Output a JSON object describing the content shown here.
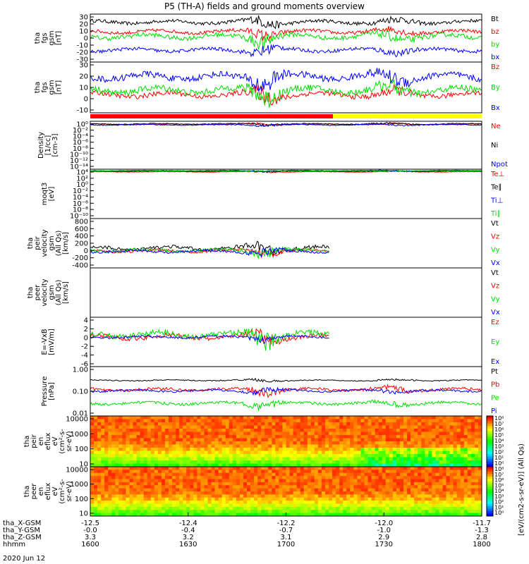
{
  "title": "P5 (TH-A) fields and ground moments overview",
  "date": "2020 Jun 12",
  "colors": {
    "black": "#000000",
    "red": "#ff0000",
    "green": "#00dd00",
    "blue": "#0000ff",
    "yellow": "#ffff00"
  },
  "chart_data": [
    {
      "type": "line",
      "ylabel": [
        "tha",
        "fgs",
        "gsm",
        "[nT]"
      ],
      "yticks": [
        "30",
        "20",
        "10",
        "0",
        "-10",
        "-20",
        "-30"
      ],
      "ylim": [
        -30,
        30
      ],
      "series": [
        {
          "name": "Bt",
          "color": "#000000",
          "level": 20,
          "amp": 3
        },
        {
          "name": "bz",
          "color": "#ff0000",
          "level": 8,
          "amp": 3
        },
        {
          "name": "by",
          "color": "#00dd00",
          "level": 2,
          "amp": 4
        },
        {
          "name": "bx",
          "color": "#0000ff",
          "level": -15,
          "amp": 3
        }
      ]
    },
    {
      "type": "line",
      "ylabel": [
        "tha",
        "fgs",
        "gsm",
        "[nT]"
      ],
      "yticks": [
        "30",
        "20",
        "10",
        "0",
        "-10"
      ],
      "ylim": [
        -15,
        30
      ],
      "series": [
        {
          "name": "Bz",
          "color": "#ff0000",
          "level": 1,
          "amp": 3
        },
        {
          "name": "By",
          "color": "#00dd00",
          "level": 5,
          "amp": 4
        },
        {
          "name": "Bx",
          "color": "#0000ff",
          "level": 17,
          "amp": 4
        }
      ]
    },
    {
      "type": "line",
      "ylabel": [
        "Density",
        "[1/cc]",
        "[cm-3]"
      ],
      "yticks": [
        "10⁰",
        "10⁻²",
        "10⁻⁴",
        "10⁻⁶",
        "10⁻⁸",
        "10⁻¹⁰",
        "10⁻¹²",
        "10⁻¹⁴"
      ],
      "ylim": [
        -15,
        1
      ],
      "series": [
        {
          "name": "Ne",
          "color": "#ff0000",
          "level": 0,
          "amp": 0.2
        },
        {
          "name": "Ni",
          "color": "#000000",
          "level": 0.1,
          "amp": 0.2
        },
        {
          "name": "Npot",
          "color": "#0000ff",
          "level": -0.2,
          "amp": 0.2
        }
      ]
    },
    {
      "type": "line",
      "ylabel": [
        "moqt3",
        "[eV]"
      ],
      "yticks": [
        "10⁴",
        "10²",
        "10⁰",
        "10⁻²",
        "10⁻⁴",
        "10⁻⁶",
        "10⁻⁸",
        "10⁻¹⁰"
      ],
      "ylim": [
        -11,
        4
      ],
      "series": [
        {
          "name": "Te⊥",
          "color": "#ff0000",
          "level": 3.2,
          "amp": 0.1
        },
        {
          "name": "Te∥",
          "color": "#000000",
          "level": 3.4,
          "amp": 0.1
        },
        {
          "name": "Ti⊥",
          "color": "#0000ff",
          "level": 3.6,
          "amp": 0.1
        },
        {
          "name": "Ti∥",
          "color": "#00dd00",
          "level": 3.5,
          "amp": 0.1
        }
      ]
    },
    {
      "type": "line",
      "ylabel": [
        "tha",
        "peir",
        "velocity",
        "gsm",
        "(All Qs)",
        "[km/s]"
      ],
      "yticks": [
        "800",
        "600",
        "400",
        "200",
        "0",
        "-200",
        "-400"
      ],
      "ylim": [
        -400,
        800
      ],
      "end": 0.61,
      "series": [
        {
          "name": "Vt",
          "color": "#000000",
          "level": 80,
          "amp": 60
        },
        {
          "name": "Vz",
          "color": "#ff0000",
          "level": 10,
          "amp": 40
        },
        {
          "name": "Vy",
          "color": "#00dd00",
          "level": 30,
          "amp": 50
        },
        {
          "name": "Vx",
          "color": "#0000ff",
          "level": 0,
          "amp": 40
        }
      ]
    },
    {
      "type": "line",
      "ylabel": [
        "tha",
        "peer",
        "velocity",
        "gsm",
        "(All Qs)",
        "[km/s]"
      ],
      "yticks": [],
      "ylim": [
        0,
        1
      ],
      "empty": true,
      "series": [
        {
          "name": "Vt",
          "color": "#000000"
        },
        {
          "name": "Vz",
          "color": "#ff0000"
        },
        {
          "name": "Vy",
          "color": "#00dd00"
        },
        {
          "name": "Vx",
          "color": "#0000ff"
        }
      ]
    },
    {
      "type": "line",
      "ylabel": [
        "E=-VxB",
        "[mV/m]"
      ],
      "yticks": [
        "4",
        "2",
        "0",
        "-2",
        "-4",
        "-6"
      ],
      "ylim": [
        -6,
        4
      ],
      "end": 0.61,
      "series": [
        {
          "name": "Ez",
          "color": "#ff0000",
          "level": 0,
          "amp": 0.6
        },
        {
          "name": "Ey",
          "color": "#00dd00",
          "level": 0.5,
          "amp": 0.8
        },
        {
          "name": "Ex",
          "color": "#0000ff",
          "level": 0,
          "amp": 0.3
        }
      ]
    },
    {
      "type": "line",
      "ylabel": [
        "Pressure",
        "[nPa]"
      ],
      "yticks": [
        "1.00",
        "0.10",
        "0.01"
      ],
      "ylim": [
        -2.1,
        0.05
      ],
      "log": true,
      "series": [
        {
          "name": "Pt",
          "color": "#000000",
          "level": -0.55,
          "amp": 0.03
        },
        {
          "name": "Pb",
          "color": "#ff0000",
          "level": -0.95,
          "amp": 0.08
        },
        {
          "name": "Pe",
          "color": "#00dd00",
          "level": -1.55,
          "amp": 0.08
        },
        {
          "name": "Pi",
          "color": "#0000ff",
          "level": -1.0,
          "amp": 0.06
        }
      ]
    },
    {
      "type": "heatmap",
      "ylabel": [
        "tha",
        "peir",
        "en",
        "eflux",
        "eV",
        "(cm²-s-",
        "sr-eV)"
      ],
      "yticks": [
        "10000",
        "1000",
        "100",
        "10"
      ],
      "ylim": [
        0.7,
        4.3
      ],
      "colorbar": [
        "10⁸",
        "10⁷",
        "10⁶",
        "10⁵",
        "10⁴",
        "10³",
        "10²",
        "10¹",
        "10⁰"
      ]
    },
    {
      "type": "heatmap",
      "ylabel": [
        "tha",
        "peer",
        "en",
        "eflux",
        "eV",
        "(cm²-s-",
        "sr-eV)"
      ],
      "yticks": [
        "10000",
        "1000",
        "100",
        "10"
      ],
      "ylim": [
        0.7,
        4.3
      ],
      "colorbar": [
        "10⁸",
        "10⁷",
        "10⁶",
        "10⁵",
        "10⁴",
        "10³",
        "10²",
        "10¹",
        "10⁰"
      ]
    }
  ],
  "colorbar_title": "[eV/(cm2-s-sr-eV)] (All Qs)",
  "xaxis": {
    "rows": [
      "tha_X-GSM",
      "tha_Y-GSM",
      "tha_Z-GSM",
      "hhmm"
    ],
    "columns": [
      [
        "-12.5",
        "-0.0",
        "3.3",
        "1600"
      ],
      [
        "-12.4",
        "-0.4",
        "3.2",
        "1630"
      ],
      [
        "-12.2",
        "-0.7",
        "3.1",
        "1700"
      ],
      [
        "-12.0",
        "-1.0",
        "2.9",
        "1730"
      ],
      [
        "-11.7",
        "-1.3",
        "2.8",
        "1800"
      ]
    ]
  }
}
